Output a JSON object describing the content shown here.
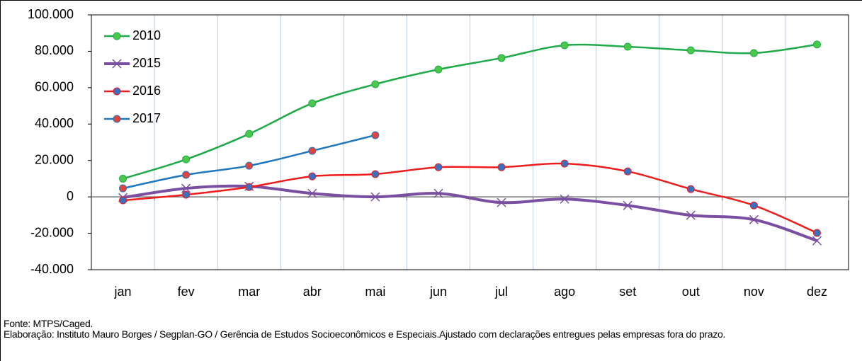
{
  "chart_data": {
    "type": "line",
    "categories": [
      "jan",
      "fev",
      "mar",
      "abr",
      "mai",
      "jun",
      "jul",
      "ago",
      "set",
      "out",
      "nov",
      "dez"
    ],
    "series": [
      {
        "name": "2010",
        "color": "#1faa4a",
        "marker": "circle",
        "marker_color": "#4cc94c",
        "line_width": 2.5,
        "values": [
          10000,
          20600,
          34600,
          51400,
          61900,
          70000,
          76300,
          83300,
          82500,
          80500,
          79000,
          83700
        ]
      },
      {
        "name": "2015",
        "color": "#7a4ea0",
        "marker": "x",
        "marker_color": "#7a4ea0",
        "line_width": 4,
        "values": [
          -400,
          4700,
          5800,
          1900,
          0,
          1900,
          -3100,
          -1200,
          -4700,
          -10100,
          -12500,
          -24100
        ]
      },
      {
        "name": "2016",
        "color": "#ee1c1c",
        "marker": "circle",
        "marker_color": "#3b6fc0",
        "line_width": 2.5,
        "values": [
          -1900,
          1200,
          5400,
          11300,
          12500,
          16300,
          16300,
          18300,
          14000,
          4300,
          -4700,
          -19800
        ]
      },
      {
        "name": "2017",
        "color": "#1f77c0",
        "marker": "circle",
        "marker_color": "#e0443a",
        "line_width": 2.5,
        "values": [
          4700,
          12100,
          17100,
          25300,
          33900,
          null,
          null,
          null,
          null,
          null,
          null,
          null
        ]
      }
    ],
    "ylim": [
      -40000,
      100000
    ],
    "yticks": [
      {
        "value": -40000,
        "label": "-40.000"
      },
      {
        "value": -20000,
        "label": "-20.000"
      },
      0,
      {
        "value": 20000,
        "label": "20.000"
      },
      {
        "value": 40000,
        "label": "40.000"
      },
      {
        "value": 60000,
        "label": "60.000"
      },
      {
        "value": 80000,
        "label": "80.000"
      },
      {
        "value": 100000,
        "label": "100.000"
      }
    ],
    "grid": "x",
    "legend": "top-left",
    "notes": [
      "Fonte: MTPS/Caged.",
      "Elaboração: Instituto Mauro Borges / Segplan-GO / Gerência de Estudos Socioeconômicos e Especiais.Ajustado com declarações entregues pelas empresas fora do prazo."
    ]
  }
}
